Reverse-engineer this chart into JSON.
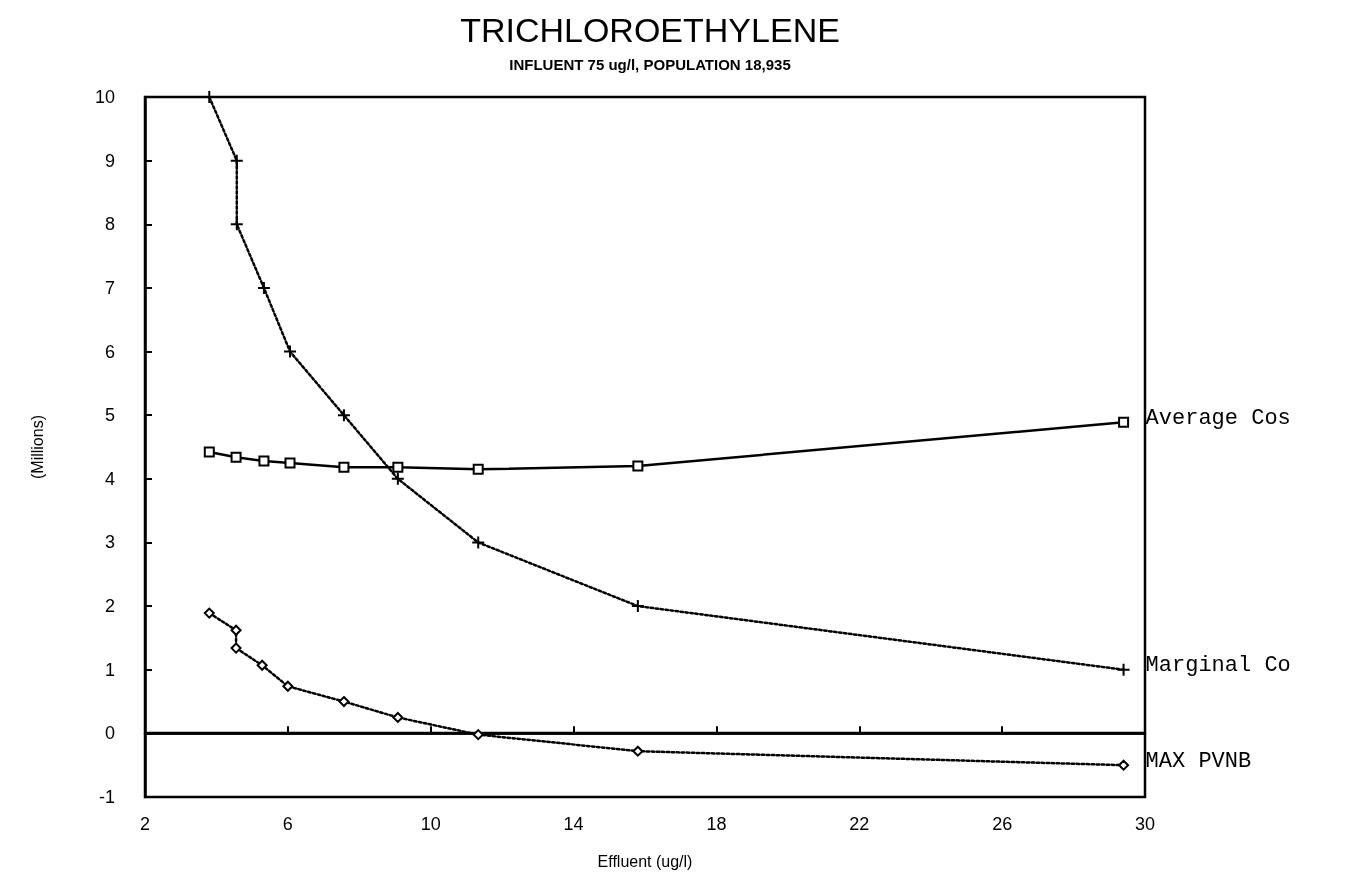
{
  "chart_data": {
    "type": "line",
    "title": "TRICHLOROETHYLENE",
    "subtitle": "INFLUENT 75 ug/l, POPULATION 18,935",
    "xlabel": "Effluent (ug/l)",
    "ylabel": "(Millions)",
    "xlim": [
      2,
      30
    ],
    "xticks": [
      2,
      6,
      10,
      14,
      18,
      22,
      26,
      30
    ],
    "ylim": [
      -1,
      10
    ],
    "yticks": [
      -1,
      0,
      1,
      2,
      3,
      4,
      5,
      6,
      7,
      8,
      9,
      10
    ],
    "grid": false,
    "legend": false,
    "ref_lines": [
      {
        "axis": "y",
        "value": 0,
        "color": "#000000",
        "line_style": "solid"
      }
    ],
    "series": [
      {
        "name": "Average Cos",
        "color": "#000000",
        "marker": "square",
        "line_style": "solid",
        "x": [
          3.8,
          4.55,
          5.33,
          6.06,
          7.57,
          9.08,
          11.33,
          15.8,
          29.4
        ],
        "values": [
          4.42,
          4.34,
          4.28,
          4.25,
          4.18,
          4.18,
          4.15,
          4.2,
          4.89
        ]
      },
      {
        "name": "Marginal Co",
        "color": "#000000",
        "marker": "cross",
        "line_style": "dotted",
        "x": [
          3.8,
          4.57,
          4.57,
          5.33,
          6.06,
          7.57,
          9.08,
          11.33,
          15.8,
          29.4
        ],
        "values": [
          10,
          9,
          8,
          7,
          6,
          5,
          4,
          3,
          2,
          1
        ]
      },
      {
        "name": "MAX PVNB",
        "color": "#000000",
        "marker": "diamond",
        "line_style": "dotted",
        "x": [
          3.8,
          4.55,
          4.55,
          5.28,
          6.0,
          7.57,
          9.08,
          11.33,
          15.8,
          29.4
        ],
        "values": [
          1.89,
          1.62,
          1.34,
          1.07,
          0.74,
          0.5,
          0.25,
          -0.02,
          -0.28,
          -0.5
        ]
      }
    ]
  }
}
